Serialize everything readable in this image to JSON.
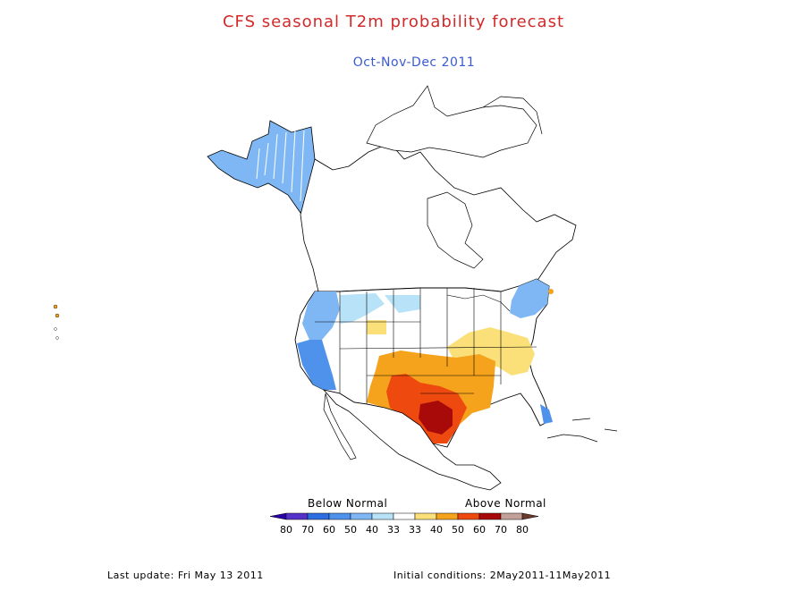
{
  "title": "CFS seasonal T2m probability forecast",
  "subtitle": "Oct-Nov-Dec 2011",
  "legend": {
    "below_label": "Below Normal",
    "above_label": "Above Normal",
    "ticks": [
      "80",
      "70",
      "60",
      "50",
      "40",
      "33",
      "33",
      "40",
      "50",
      "60",
      "70",
      "80"
    ],
    "colors": [
      "#2a00a8",
      "#5533c8",
      "#2f6ee0",
      "#4f92ec",
      "#7fb7f5",
      "#b7e2f7",
      "#ffffff",
      "#fbe07a",
      "#f5a21c",
      "#ee4a10",
      "#a80a0a",
      "#c4a09a",
      "#6b3a2a"
    ]
  },
  "footer": {
    "last_update": "Last update: Fri May 13 2011",
    "initial_conditions": "Initial conditions: 2May2011-11May2011"
  },
  "regions": [
    {
      "name": "alaska",
      "color": "#7fb7f5",
      "category": "below-40"
    },
    {
      "name": "pacific-northwest",
      "color": "#7fb7f5",
      "category": "below-40"
    },
    {
      "name": "california-coast",
      "color": "#4f92ec",
      "category": "below-50"
    },
    {
      "name": "northern-rockies",
      "color": "#b7e2f7",
      "category": "below-33"
    },
    {
      "name": "northern-plains",
      "color": "#b7e2f7",
      "category": "below-33"
    },
    {
      "name": "new-england",
      "color": "#7fb7f5",
      "category": "below-40"
    },
    {
      "name": "florida-tip",
      "color": "#4f92ec",
      "category": "below-50"
    },
    {
      "name": "ohio-valley",
      "color": "#fbe07a",
      "category": "above-40"
    },
    {
      "name": "southern-plains",
      "color": "#f5a21c",
      "category": "above-50"
    },
    {
      "name": "texas",
      "color": "#ee4a10",
      "category": "above-60"
    },
    {
      "name": "central-texas",
      "color": "#a80a0a",
      "category": "above-70"
    }
  ]
}
